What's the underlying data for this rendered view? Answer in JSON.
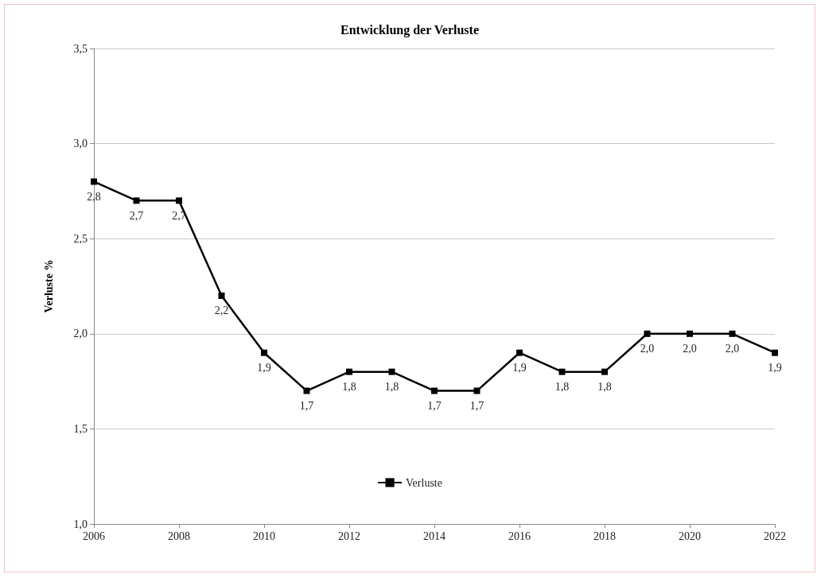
{
  "chart_data": {
    "type": "line",
    "title": "Entwicklung der Verluste",
    "ylabel": "Verluste %",
    "x": [
      2006,
      2007,
      2008,
      2009,
      2010,
      2011,
      2012,
      2013,
      2014,
      2015,
      2016,
      2017,
      2018,
      2019,
      2020,
      2021,
      2022
    ],
    "series": [
      {
        "name": "Verluste",
        "color": "#000000",
        "values": [
          2.8,
          2.7,
          2.7,
          2.2,
          1.9,
          1.7,
          1.8,
          1.8,
          1.7,
          1.7,
          1.9,
          1.8,
          1.8,
          2.0,
          2.0,
          2.0,
          1.9
        ],
        "value_labels": [
          "2,8",
          "2,7",
          "2,7",
          "2,2",
          "1,9",
          "1,7",
          "1,8",
          "1,8",
          "1,7",
          "1,7",
          "1,9",
          "1,8",
          "1,8",
          "2,0",
          "2,0",
          "2,0",
          "1,9"
        ]
      }
    ],
    "xlim": [
      2006,
      2022
    ],
    "xticks": [
      2006,
      2008,
      2010,
      2012,
      2014,
      2016,
      2018,
      2020,
      2022
    ],
    "ylim": [
      1.0,
      3.5
    ],
    "yticks": [
      {
        "value": 1.0,
        "label": "1,0"
      },
      {
        "value": 1.5,
        "label": "1,5"
      },
      {
        "value": 2.0,
        "label": "2,0"
      },
      {
        "value": 2.5,
        "label": "2,5"
      },
      {
        "value": 3.0,
        "label": "3,0"
      },
      {
        "value": 3.5,
        "label": "3,5"
      }
    ],
    "grid": "y",
    "legend": "bottom",
    "marker": "square",
    "line_style": "solid"
  }
}
